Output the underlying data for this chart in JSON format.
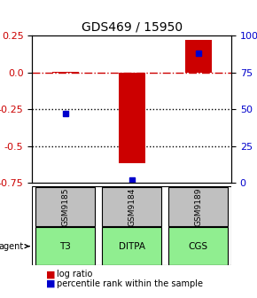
{
  "title": "GDS469 / 15950",
  "samples": [
    "GSM9185",
    "GSM9184",
    "GSM9189"
  ],
  "agents": [
    "T3",
    "DITPA",
    "CGS"
  ],
  "log_ratios": [
    0.005,
    -0.62,
    0.22
  ],
  "percentiles": [
    47,
    2,
    88
  ],
  "ylim_left": [
    -0.75,
    0.25
  ],
  "ylim_right": [
    0,
    100
  ],
  "left_ticks": [
    0.25,
    0.0,
    -0.25,
    -0.5,
    -0.75
  ],
  "right_ticks": [
    100,
    75,
    50,
    25,
    0
  ],
  "bar_color": "#cc0000",
  "percentile_color": "#0000cc",
  "zero_line_color": "#cc0000",
  "dotted_line_color": "#000000",
  "gray_box_color": "#c0c0c0",
  "green_box_color": "#90ee90",
  "bar_width": 0.4,
  "left_tick_color": "#cc0000",
  "right_tick_color": "#0000cc"
}
